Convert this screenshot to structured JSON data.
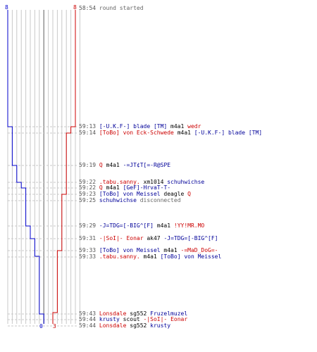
{
  "colors": {
    "red_team": "#cc0000",
    "blue_team": "#0000cc",
    "text": "#000000",
    "time": "#555555"
  },
  "score": {
    "blue_start": "8",
    "red_start": "8",
    "blue_end": "0",
    "red_end": "3"
  },
  "chart_data": {
    "type": "line",
    "series": [
      {
        "color": "#0000cc",
        "values": [
          8,
          7,
          6,
          5,
          4,
          3,
          2,
          1,
          0
        ]
      },
      {
        "color": "#cc0000",
        "values": [
          8,
          7,
          6,
          5,
          4,
          3
        ]
      }
    ]
  },
  "events": [
    {
      "time": "58:54",
      "parts": [
        {
          "text": "round started",
          "color": "grey"
        }
      ]
    },
    {
      "time": "59:13",
      "parts": [
        {
          "text": "[-U.K.F-] blade [TM]",
          "color": "blue"
        },
        {
          "text": " m4a1 ",
          "color": "blk"
        },
        {
          "text": "wedr",
          "color": "red"
        }
      ]
    },
    {
      "time": "59:14",
      "parts": [
        {
          "text": "[ToBo] von Eck-Schwede",
          "color": "red"
        },
        {
          "text": " m4a1 ",
          "color": "blk"
        },
        {
          "text": "[-U.K.F-] blade [TM]",
          "color": "blue"
        }
      ]
    },
    {
      "time": "59:19",
      "parts": [
        {
          "text": "Q",
          "color": "red"
        },
        {
          "text": " m4a1 ",
          "color": "blk"
        },
        {
          "text": "-=JT¢T[=-R@SPE",
          "color": "blue"
        }
      ]
    },
    {
      "time": "59:22",
      "parts": [
        {
          "text": ".tabu.sanny.",
          "color": "red"
        },
        {
          "text": " xm1014 ",
          "color": "blk"
        },
        {
          "text": "schuhwichse",
          "color": "blue"
        }
      ]
    },
    {
      "time": "59:22",
      "parts": [
        {
          "text": "Q",
          "color": "red"
        },
        {
          "text": " m4a1 ",
          "color": "blk"
        },
        {
          "text": "[GeF]-HrvaT-T-",
          "color": "blue"
        }
      ]
    },
    {
      "time": "59:23",
      "parts": [
        {
          "text": "[ToBo] von Meissel",
          "color": "blue"
        },
        {
          "text": " deagle ",
          "color": "blk"
        },
        {
          "text": "Q",
          "color": "red"
        }
      ]
    },
    {
      "time": "59:25",
      "parts": [
        {
          "text": "schuhwichse",
          "color": "blue"
        },
        {
          "text": " disconnected",
          "color": "grey"
        }
      ]
    },
    {
      "time": "59:29",
      "parts": [
        {
          "text": "-J=TDG=[-BIG^[F]",
          "color": "blue"
        },
        {
          "text": " m4a1 ",
          "color": "blk"
        },
        {
          "text": "!YY!MR.MO",
          "color": "red"
        }
      ]
    },
    {
      "time": "59:31",
      "parts": [
        {
          "text": "-|SoI|- Eonar",
          "color": "red"
        },
        {
          "text": " ak47 ",
          "color": "blk"
        },
        {
          "text": "-J=TDG=[-BIG^[F]",
          "color": "blue"
        }
      ]
    },
    {
      "time": "59:33",
      "parts": [
        {
          "text": "[ToBo] von Meissel",
          "color": "blue"
        },
        {
          "text": " m4a1 ",
          "color": "blk"
        },
        {
          "text": "-=MaD_DoG=-",
          "color": "red"
        }
      ]
    },
    {
      "time": "59:33",
      "parts": [
        {
          "text": ".tabu.sanny.",
          "color": "red"
        },
        {
          "text": " m4a1 ",
          "color": "blk"
        },
        {
          "text": "[ToBo] von Meissel",
          "color": "blue"
        }
      ]
    },
    {
      "time": "59:43",
      "parts": [
        {
          "text": "Lonsdale",
          "color": "red"
        },
        {
          "text": " sg552 ",
          "color": "blk"
        },
        {
          "text": "Fruzelmuzel",
          "color": "blue"
        }
      ]
    },
    {
      "time": "59:44",
      "parts": [
        {
          "text": "krusty",
          "color": "blue"
        },
        {
          "text": " scout ",
          "color": "blk"
        },
        {
          "text": "-|SoI|- Eonar",
          "color": "red"
        }
      ]
    },
    {
      "time": "59:44",
      "parts": [
        {
          "text": "Lonsdale",
          "color": "red"
        },
        {
          "text": " sg552 ",
          "color": "blk"
        },
        {
          "text": "krusty",
          "color": "blue"
        }
      ]
    }
  ]
}
